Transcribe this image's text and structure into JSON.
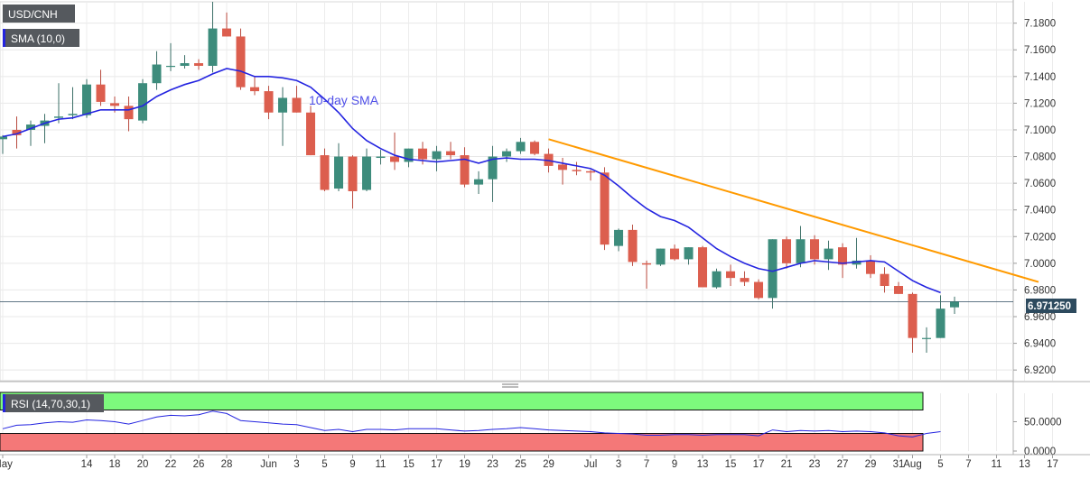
{
  "chart_data": {
    "type": "candlestick",
    "symbol_badge": "USD/CNH",
    "sma_badge": "SMA (10,0)",
    "sma_label": "10-day SMA",
    "last_price": "6.971250",
    "y_ticks": [
      "7.1800",
      "7.1600",
      "7.1400",
      "7.1200",
      "7.1000",
      "7.0800",
      "7.0600",
      "7.0400",
      "7.0200",
      "7.0000",
      "6.9800",
      "6.9600",
      "6.9400",
      "6.9200"
    ],
    "ylim": [
      6.912,
      7.196
    ],
    "x_ticks": [
      {
        "label": "May",
        "i": 0
      },
      {
        "label": "14",
        "i": 6
      },
      {
        "label": "18",
        "i": 8
      },
      {
        "label": "20",
        "i": 10
      },
      {
        "label": "22",
        "i": 12
      },
      {
        "label": "26",
        "i": 14
      },
      {
        "label": "28",
        "i": 16
      },
      {
        "label": "Jun",
        "i": 19
      },
      {
        "label": "3",
        "i": 21
      },
      {
        "label": "5",
        "i": 23
      },
      {
        "label": "9",
        "i": 25
      },
      {
        "label": "11",
        "i": 27
      },
      {
        "label": "15",
        "i": 29
      },
      {
        "label": "17",
        "i": 31
      },
      {
        "label": "19",
        "i": 33
      },
      {
        "label": "23",
        "i": 35
      },
      {
        "label": "25",
        "i": 37
      },
      {
        "label": "29",
        "i": 39
      },
      {
        "label": "Jul",
        "i": 42
      },
      {
        "label": "3",
        "i": 44
      },
      {
        "label": "7",
        "i": 46
      },
      {
        "label": "9",
        "i": 48
      },
      {
        "label": "13",
        "i": 50
      },
      {
        "label": "15",
        "i": 52
      },
      {
        "label": "17",
        "i": 54
      },
      {
        "label": "21",
        "i": 56
      },
      {
        "label": "23",
        "i": 58
      },
      {
        "label": "27",
        "i": 60
      },
      {
        "label": "29",
        "i": 62
      },
      {
        "label": "31",
        "i": 64
      },
      {
        "label": "Aug",
        "i": 65
      },
      {
        "label": "5",
        "i": 67
      },
      {
        "label": "7",
        "i": 69
      },
      {
        "label": "11",
        "i": 71
      },
      {
        "label": "13",
        "i": 73
      },
      {
        "label": "17",
        "i": 75
      }
    ],
    "candles": [
      [
        7.093,
        7.096,
        7.082,
        7.095
      ],
      [
        7.1,
        7.11,
        7.086,
        7.096
      ],
      [
        7.1,
        7.107,
        7.088,
        7.104
      ],
      [
        7.103,
        7.112,
        7.09,
        7.107
      ],
      [
        7.109,
        7.135,
        7.105,
        7.11
      ],
      [
        7.111,
        7.132,
        7.108,
        7.112
      ],
      [
        7.111,
        7.138,
        7.109,
        7.134
      ],
      [
        7.134,
        7.145,
        7.118,
        7.121
      ],
      [
        7.12,
        7.125,
        7.113,
        7.118
      ],
      [
        7.118,
        7.125,
        7.099,
        7.108
      ],
      [
        7.107,
        7.138,
        7.105,
        7.135
      ],
      [
        7.135,
        7.159,
        7.13,
        7.149
      ],
      [
        7.148,
        7.165,
        7.144,
        7.148
      ],
      [
        7.148,
        7.156,
        7.146,
        7.15
      ],
      [
        7.15,
        7.153,
        7.145,
        7.148
      ],
      [
        7.148,
        7.196,
        7.143,
        7.176
      ],
      [
        7.176,
        7.188,
        7.17,
        7.17
      ],
      [
        7.17,
        7.176,
        7.13,
        7.132
      ],
      [
        7.132,
        7.14,
        7.126,
        7.129
      ],
      [
        7.129,
        7.133,
        7.108,
        7.113
      ],
      [
        7.113,
        7.132,
        7.088,
        7.124
      ],
      [
        7.124,
        7.133,
        7.113,
        7.113
      ],
      [
        7.113,
        7.118,
        7.081,
        7.081
      ],
      [
        7.081,
        7.086,
        7.054,
        7.055
      ],
      [
        7.056,
        7.09,
        7.054,
        7.08
      ],
      [
        7.08,
        7.081,
        7.041,
        7.054
      ],
      [
        7.055,
        7.086,
        7.054,
        7.08
      ],
      [
        7.079,
        7.085,
        7.074,
        7.08
      ],
      [
        7.08,
        7.098,
        7.07,
        7.076
      ],
      [
        7.076,
        7.086,
        7.072,
        7.086
      ],
      [
        7.086,
        7.091,
        7.074,
        7.078
      ],
      [
        7.078,
        7.088,
        7.069,
        7.084
      ],
      [
        7.084,
        7.091,
        7.078,
        7.081
      ],
      [
        7.081,
        7.087,
        7.057,
        7.059
      ],
      [
        7.059,
        7.069,
        7.052,
        7.063
      ],
      [
        7.063,
        7.088,
        7.046,
        7.08
      ],
      [
        7.08,
        7.086,
        7.076,
        7.084
      ],
      [
        7.084,
        7.094,
        7.082,
        7.091
      ],
      [
        7.091,
        7.092,
        7.081,
        7.082
      ],
      [
        7.082,
        7.086,
        7.068,
        7.073
      ],
      [
        7.074,
        7.079,
        7.059,
        7.07
      ],
      [
        7.07,
        7.076,
        7.066,
        7.069
      ],
      [
        7.069,
        7.07,
        7.062,
        7.068
      ],
      [
        7.068,
        7.072,
        7.01,
        7.014
      ],
      [
        7.013,
        7.026,
        7.009,
        7.025
      ],
      [
        7.025,
        7.029,
        6.998,
        7.001
      ],
      [
        7.0,
        7.002,
        6.981,
        6.999
      ],
      [
        6.999,
        7.011,
        6.998,
        7.011
      ],
      [
        7.011,
        7.014,
        7.002,
        7.003
      ],
      [
        7.003,
        7.012,
        6.999,
        7.012
      ],
      [
        7.012,
        7.013,
        6.982,
        6.982
      ],
      [
        6.982,
        6.996,
        6.981,
        6.994
      ],
      [
        6.994,
        6.999,
        6.983,
        6.989
      ],
      [
        6.989,
        6.994,
        6.983,
        6.986
      ],
      [
        6.986,
        6.988,
        6.973,
        6.974
      ],
      [
        6.974,
        7.018,
        6.966,
        7.018
      ],
      [
        7.018,
        7.02,
        6.996,
        7.0
      ],
      [
        7.0,
        7.028,
        6.997,
        7.018
      ],
      [
        7.018,
        7.021,
        6.999,
        7.003
      ],
      [
        7.003,
        7.017,
        6.995,
        7.011
      ],
      [
        7.012,
        7.015,
        6.989,
        6.999
      ],
      [
        6.999,
        7.019,
        6.996,
        7.002
      ],
      [
        7.002,
        7.006,
        6.989,
        6.992
      ],
      [
        6.992,
        6.997,
        6.978,
        6.983
      ],
      [
        6.983,
        6.986,
        6.977,
        6.977
      ],
      [
        6.977,
        6.978,
        6.933,
        6.944
      ],
      [
        6.944,
        6.952,
        6.933,
        6.944
      ],
      [
        6.944,
        6.976,
        6.944,
        6.966
      ],
      [
        6.967,
        6.975,
        6.962,
        6.9712
      ]
    ],
    "sma": [
      7.095,
      7.097,
      7.101,
      7.105,
      7.108,
      7.109,
      7.112,
      7.115,
      7.115,
      7.115,
      7.118,
      7.125,
      7.13,
      7.134,
      7.137,
      7.142,
      7.146,
      7.144,
      7.14,
      7.14,
      7.139,
      7.137,
      7.132,
      7.123,
      7.113,
      7.101,
      7.092,
      7.086,
      7.081,
      7.078,
      7.077,
      7.076,
      7.077,
      7.078,
      7.075,
      7.078,
      7.079,
      7.078,
      7.078,
      7.077,
      7.075,
      7.073,
      7.071,
      7.066,
      7.058,
      7.049,
      7.041,
      7.035,
      7.032,
      7.027,
      7.019,
      7.011,
      7.005,
      7.0,
      6.996,
      6.994,
      6.997,
      7.0,
      7.002,
      7.001,
      7.0,
      7.001,
      7.002,
      7.001,
      6.994,
      6.987,
      6.982,
      6.978
    ],
    "resistance_line": {
      "from": [
        39,
        7.093
      ],
      "to": [
        74,
        6.986
      ]
    },
    "rsi": {
      "badge": "RSI (14,70,30,1)",
      "ticks": [
        "50.0000",
        "0.0000"
      ],
      "ylim": [
        0,
        100
      ],
      "overbought": 70,
      "oversold": 30,
      "values": [
        38,
        44,
        45,
        48,
        50,
        49,
        53,
        52,
        50,
        46,
        52,
        58,
        61,
        60,
        62,
        68,
        64,
        52,
        50,
        48,
        46,
        45,
        40,
        35,
        37,
        33,
        37,
        37,
        36,
        38,
        38,
        38,
        36,
        34,
        35,
        37,
        38,
        40,
        38,
        36,
        35,
        34,
        33,
        31,
        30,
        29,
        27,
        27,
        28,
        28,
        27,
        28,
        28,
        28,
        26,
        36,
        33,
        35,
        34,
        35,
        33,
        34,
        33,
        31,
        26,
        24,
        30,
        33
      ]
    }
  }
}
